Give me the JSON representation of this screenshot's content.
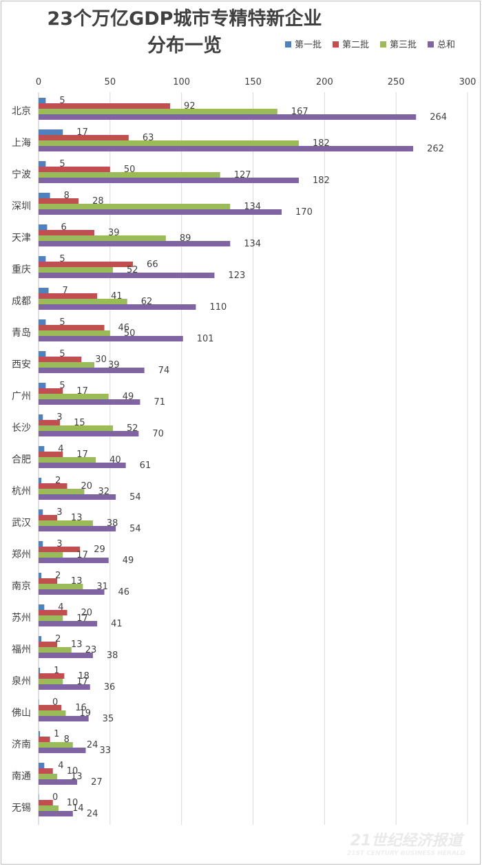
{
  "chart_data": {
    "type": "bar",
    "orientation": "horizontal",
    "title_lines": [
      "23个万亿GDP城市专精特新企业",
      "分布一览"
    ],
    "xlabel": "",
    "ylabel": "",
    "xlim": [
      0,
      300
    ],
    "x_ticks": [
      0,
      50,
      100,
      150,
      200,
      250,
      300
    ],
    "x_axis_position": "top",
    "grid": "vertical",
    "legend_position": "top-right",
    "categories": [
      "北京",
      "上海",
      "宁波",
      "深圳",
      "天津",
      "重庆",
      "成都",
      "青岛",
      "西安",
      "广州",
      "长沙",
      "合肥",
      "杭州",
      "武汉",
      "郑州",
      "南京",
      "苏州",
      "福州",
      "泉州",
      "佛山",
      "济南",
      "南通",
      "无锡"
    ],
    "series": [
      {
        "name": "第一批",
        "color": "#4f81bd",
        "values": [
          5,
          17,
          5,
          8,
          6,
          5,
          7,
          5,
          5,
          5,
          3,
          4,
          2,
          3,
          3,
          2,
          4,
          2,
          1,
          0,
          1,
          4,
          0
        ]
      },
      {
        "name": "第二批",
        "color": "#c0504d",
        "values": [
          92,
          63,
          50,
          28,
          39,
          66,
          41,
          46,
          30,
          17,
          15,
          17,
          20,
          13,
          29,
          13,
          20,
          13,
          18,
          16,
          8,
          10,
          10
        ]
      },
      {
        "name": "第三批",
        "color": "#9bbb59",
        "values": [
          167,
          182,
          127,
          134,
          89,
          52,
          62,
          50,
          39,
          49,
          52,
          40,
          32,
          38,
          17,
          31,
          17,
          23,
          17,
          19,
          24,
          13,
          14
        ]
      },
      {
        "name": "总和",
        "color": "#8064a2",
        "values": [
          264,
          262,
          182,
          170,
          134,
          123,
          110,
          101,
          74,
          71,
          70,
          61,
          54,
          54,
          49,
          46,
          41,
          38,
          36,
          35,
          33,
          27,
          24
        ]
      }
    ]
  },
  "watermark": {
    "line1": "21世纪经济报道",
    "line2": "21ST CENTURY BUSINESS HERALD"
  }
}
